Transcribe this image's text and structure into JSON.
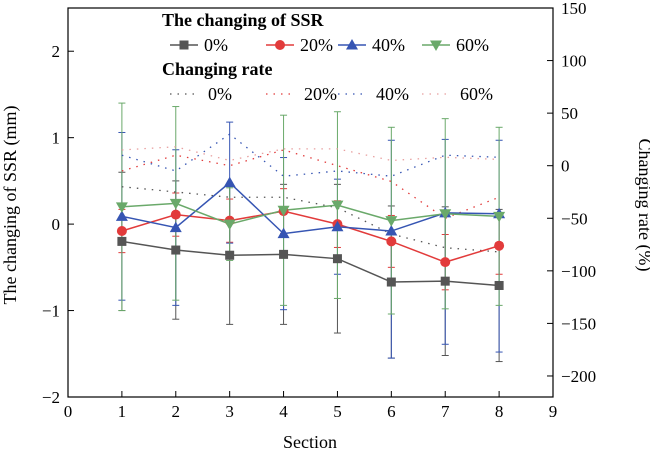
{
  "chart_data": {
    "type": "line",
    "xlabel": "Section",
    "ylabel": "The changing of SSR (mm)",
    "y2label": "Changing rate (%)",
    "xlim": [
      0,
      9
    ],
    "ylim": [
      -2,
      2.5
    ],
    "y2lim": [
      -220,
      150
    ],
    "xticks": [
      "0",
      "1",
      "2",
      "3",
      "4",
      "5",
      "6",
      "7",
      "8",
      "9"
    ],
    "yticks": [
      "−2",
      "−1",
      "0",
      "1",
      "2"
    ],
    "y2ticks": [
      "−200",
      "−150",
      "−100",
      "−50",
      "0",
      "50",
      "100",
      "150"
    ],
    "legend_position": "top-left",
    "legend_title_ssr": "The changing of SSR",
    "legend_title_rate": "Changing rate",
    "x": [
      1,
      2,
      3,
      4,
      5,
      6,
      7,
      8
    ],
    "ssr_series": [
      {
        "name": "0%",
        "color": "#555555",
        "marker": "square",
        "values": [
          -0.2,
          -0.3,
          -0.36,
          -0.35,
          -0.4,
          -0.67,
          -0.66,
          -0.71
        ],
        "err_low": [
          0.8,
          0.8,
          0.8,
          0.81,
          0.86,
          0.88,
          0.86,
          0.88
        ],
        "err_high": [
          0.8,
          0.8,
          0.8,
          0.81,
          0.86,
          0.88,
          0.86,
          0.88
        ]
      },
      {
        "name": "20%",
        "color": "#e23b3b",
        "marker": "circle",
        "values": [
          -0.08,
          0.11,
          0.04,
          0.15,
          0.0,
          -0.2,
          -0.44,
          -0.25
        ],
        "err_low": [
          0.25,
          0.25,
          0.25,
          0.26,
          0.27,
          0.3,
          0.32,
          0.33
        ],
        "err_high": [
          0.25,
          0.25,
          0.25,
          0.26,
          0.27,
          0.3,
          0.32,
          0.33
        ]
      },
      {
        "name": "40%",
        "color": "#3655b3",
        "marker": "triangle-up",
        "values": [
          0.09,
          -0.04,
          0.48,
          -0.11,
          -0.03,
          -0.08,
          0.13,
          0.12
        ],
        "err_low": [
          0.97,
          0.9,
          0.7,
          0.88,
          0.55,
          1.47,
          1.52,
          1.6
        ],
        "err_high": [
          0.97,
          0.9,
          0.7,
          0.88,
          0.55,
          1.05,
          0.85,
          0.85
        ]
      },
      {
        "name": "60%",
        "color": "#6aa96a",
        "marker": "triangle-down",
        "values": [
          0.2,
          0.24,
          0.0,
          0.16,
          0.22,
          0.04,
          0.12,
          0.09
        ],
        "err_low": [
          1.2,
          1.12,
          0.42,
          1.1,
          1.08,
          1.08,
          1.1,
          1.03
        ],
        "err_high": [
          1.2,
          1.12,
          0.42,
          1.1,
          1.08,
          1.08,
          1.1,
          1.03
        ]
      }
    ],
    "rate_series": [
      {
        "name": "0%",
        "color": "#555555",
        "values": [
          -20,
          -25,
          -30,
          -30,
          -40,
          -65,
          -78,
          -82
        ]
      },
      {
        "name": "20%",
        "color": "#e23b3b",
        "values": [
          -5,
          10,
          0,
          15,
          0,
          -15,
          -50,
          -30
        ]
      },
      {
        "name": "40%",
        "color": "#3655b3",
        "values": [
          10,
          -5,
          30,
          -10,
          -5,
          -10,
          10,
          8
        ]
      },
      {
        "name": "60%",
        "color": "#e8a0a0",
        "values": [
          15,
          18,
          5,
          16,
          16,
          5,
          8,
          6
        ]
      }
    ]
  }
}
